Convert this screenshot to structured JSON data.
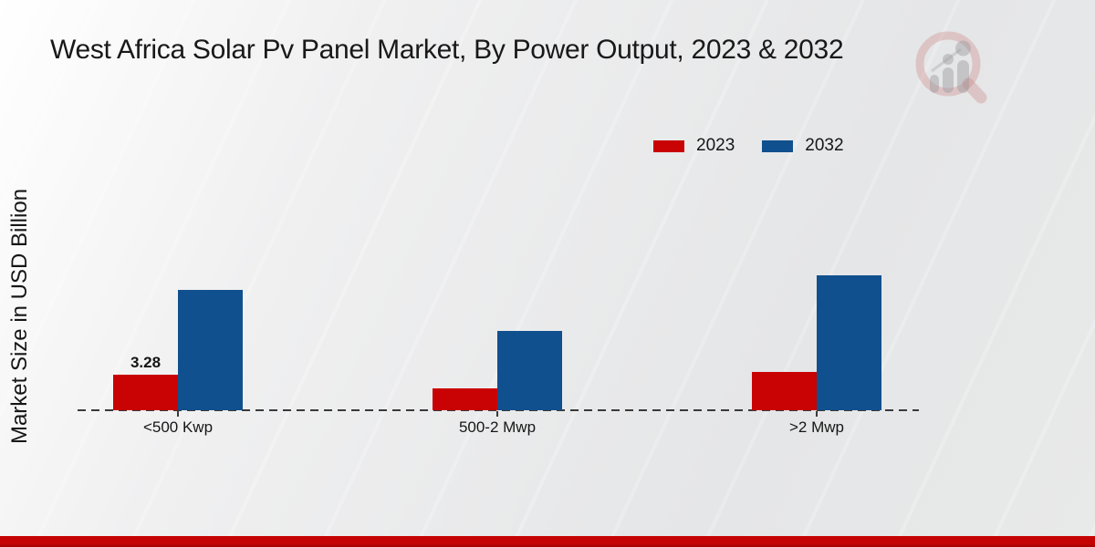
{
  "page": {
    "title": "West Africa Solar Pv Panel Market, By Power Output, 2023 & 2032",
    "y_axis_label": "Market Size in USD Billion"
  },
  "colors": {
    "series_2023": "#c90303",
    "series_2032": "#11508e",
    "footer_band": "#c60303",
    "background": "#e8e9ea",
    "baseline": "#3a3a3a"
  },
  "watermark_icon": "magnifier-bar-chart-logo-icon",
  "chart_data": {
    "type": "bar",
    "title": "West Africa Solar Pv Panel Market, By Power Output, 2023 & 2032",
    "xlabel": "",
    "ylabel": "Market Size in USD Billion",
    "categories": [
      "<500 Kwp",
      "500-2 Mwp",
      ">2 Mwp"
    ],
    "series": [
      {
        "name": "2023",
        "color": "#c90303",
        "values": [
          3.28,
          2.0,
          3.5
        ],
        "data_labels": [
          "3.28",
          "",
          ""
        ]
      },
      {
        "name": "2032",
        "color": "#11508e",
        "values": [
          11.1,
          7.3,
          12.45
        ],
        "data_labels": [
          "",
          "",
          ""
        ]
      }
    ],
    "ylim": [
      0,
      13.5
    ],
    "grid": false,
    "value_axis_ticks_visible": false,
    "legend_position": "top-right",
    "zero_baseline_style": "dashed"
  }
}
